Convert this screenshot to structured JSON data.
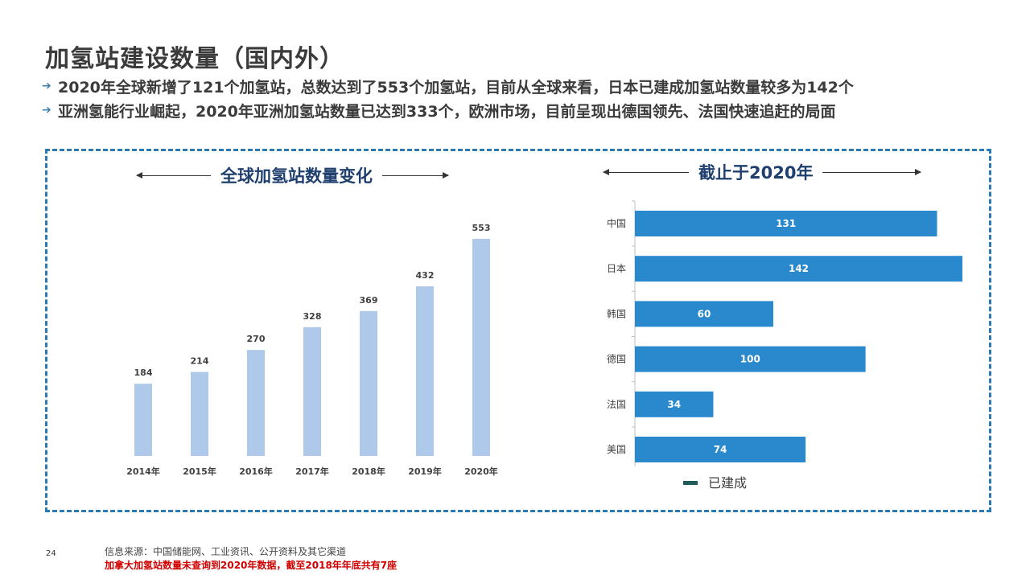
{
  "title": "加氢站建设数量（国内外）",
  "bullets": [
    "2020年全球新增了121个加氢站，总数达到了553个加氢站，目前从全球来看，日本已建成加氢站数量较多为142个",
    "亚洲氢能行业崛起，2020年亚洲加氢站数量已达到333个，欧洲市场，目前呈现出德国领先、法国快速追赶的局面"
  ],
  "left_section_title": "全球加氢站数量变化",
  "right_section_title": "截止于2020年",
  "colors": {
    "bar_left": "#aec9e9",
    "bar_right": "#2a89cc",
    "legend_swatch": "#1f5c5a",
    "panel_border": "#2a7ab3",
    "note": "#d00000"
  },
  "chart_data": [
    {
      "type": "bar",
      "title": "全球加氢站数量变化",
      "categories": [
        "2014年",
        "2015年",
        "2016年",
        "2017年",
        "2018年",
        "2019年",
        "2020年"
      ],
      "values": [
        184,
        214,
        270,
        328,
        369,
        432,
        553
      ],
      "ylim": [
        0,
        553
      ],
      "xlabel": "",
      "ylabel": ""
    },
    {
      "type": "bar",
      "orientation": "horizontal",
      "title": "截止于2020年",
      "categories": [
        "中国",
        "日本",
        "韩国",
        "德国",
        "法国",
        "美国"
      ],
      "series": [
        {
          "name": "已建成",
          "values": [
            131,
            142,
            60,
            100,
            34,
            74
          ]
        }
      ],
      "xlim": [
        0,
        142
      ],
      "legend_position": "bottom"
    }
  ],
  "footer": {
    "page_number": "24",
    "source": "信息来源：中国储能网、工业资讯、公开资料及其它渠道",
    "note": "加拿大加氢站数量未查询到2020年数据，截至2018年年底共有7座"
  }
}
